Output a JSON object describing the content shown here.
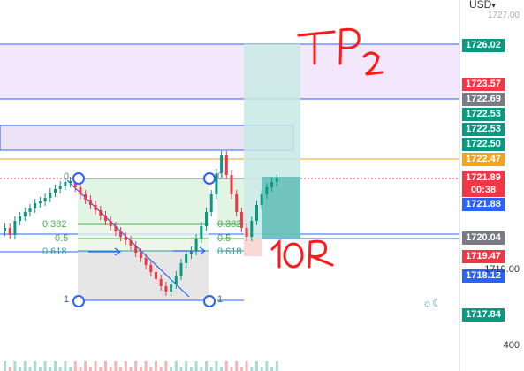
{
  "currency": "USD",
  "currency_chevron": "chevron-down-icon",
  "annotations": {
    "tp": "TP",
    "tp_sub": "2",
    "rr": "10R"
  },
  "fib_levels": [
    "0",
    "0.382",
    "0.5",
    "0.618",
    "1"
  ],
  "price_axis": {
    "top_partial": "1727.00",
    "tags": [
      {
        "id": "t1",
        "value": "1726.02",
        "color": "#089981"
      },
      {
        "id": "t2",
        "value": "1723.57",
        "color": "#f23645"
      },
      {
        "id": "t3",
        "value": "1722.69",
        "color": "#787b86"
      },
      {
        "id": "t4",
        "value": "1722.53",
        "color": "#089981"
      },
      {
        "id": "t5",
        "value": "1722.53",
        "color": "#089981"
      },
      {
        "id": "t6",
        "value": "1722.50",
        "color": "#089981"
      },
      {
        "id": "t7",
        "value": "1722.47",
        "color": "#f7a21b"
      },
      {
        "id": "t8",
        "value": "1721.89",
        "color": "#f23645"
      },
      {
        "id": "t9",
        "value": "00:38",
        "color": "#f23645"
      },
      {
        "id": "t10",
        "value": "1721.88",
        "color": "#2962ff"
      },
      {
        "id": "t11",
        "value": "1720.04",
        "color": "#787b86"
      },
      {
        "id": "t12",
        "value": "1719.47",
        "color": "#f23645"
      },
      {
        "id": "t13",
        "value": "1718.12",
        "color": "#2962ff"
      },
      {
        "id": "t14",
        "value": "1717.84",
        "color": "#089981"
      }
    ],
    "plain_label": "1719.00",
    "volume_label": "400"
  },
  "colors": {
    "up": "#089981",
    "down": "#f23645",
    "fib_line": "#2962ff",
    "zone_fill": "#f3e8fb",
    "tp_fill": "#c7e9e4",
    "sl_fill": "#f8d7d7",
    "hand": "#ff0000"
  }
}
